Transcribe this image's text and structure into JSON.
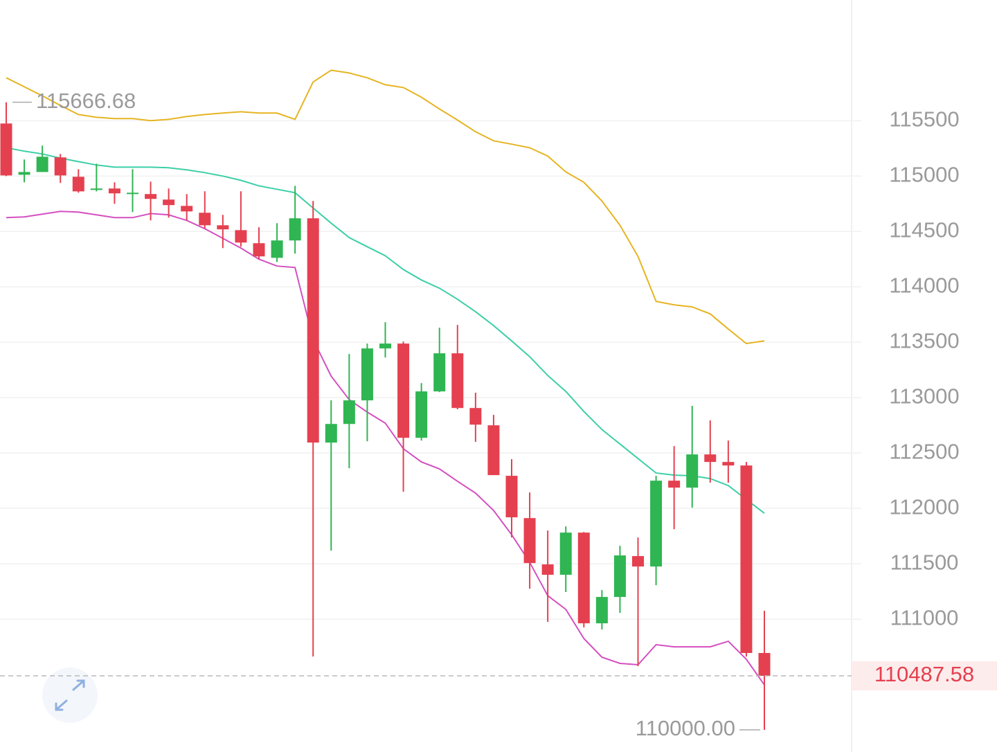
{
  "chart_data": {
    "type": "candlestick",
    "ylim": [
      109800,
      116590
    ],
    "yticks": [
      111000,
      111500,
      112000,
      112500,
      113000,
      113500,
      114000,
      114500,
      115000,
      115500
    ],
    "grid": true,
    "up_color": "#2fb552",
    "down_color": "#e5404f",
    "open": [
      115475,
      115012,
      115037,
      115169,
      114994,
      114875,
      114888,
      114844,
      114838,
      114788,
      114731,
      114669,
      114556,
      114512,
      114394,
      114262,
      114419,
      114619,
      112594,
      112762,
      112975,
      113444,
      113488,
      112637,
      113056,
      113400,
      112906,
      112750,
      112294,
      111912,
      111494,
      111400,
      111781,
      110962,
      111200,
      111569,
      111475,
      112250,
      112187,
      112487,
      112419,
      112387,
      110694
    ],
    "high": [
      115666.68,
      115150,
      115275,
      115200,
      115062,
      115112,
      114944,
      115062,
      114950,
      114888,
      114838,
      114863,
      114650,
      114863,
      114538,
      114575,
      114912,
      114775,
      112975,
      113394,
      113488,
      113681,
      113506,
      113131,
      113631,
      113656,
      113044,
      112844,
      112444,
      112144,
      111800,
      111837,
      111787,
      111262,
      111662,
      111737,
      112294,
      112562,
      112925,
      112794,
      112612,
      112419,
      111075
    ],
    "low": [
      115000,
      114944,
      115037,
      114938,
      114850,
      114862,
      114750,
      114675,
      114600,
      114625,
      114600,
      114525,
      114350,
      114362,
      114250,
      114225,
      114300,
      110662,
      111619,
      112362,
      112606,
      113362,
      112150,
      112612,
      113050,
      112894,
      112600,
      112300,
      111737,
      111275,
      110975,
      111244,
      110925,
      110906,
      111056,
      110575,
      111306,
      111812,
      112006,
      112231,
      112231,
      110662,
      110000
    ],
    "close": [
      115006,
      115037,
      115175,
      115006,
      114862,
      114888,
      114844,
      114850,
      114794,
      114738,
      114681,
      114556,
      114519,
      114400,
      114275,
      114419,
      114619,
      112594,
      112762,
      112975,
      113444,
      113488,
      112637,
      113056,
      113400,
      112906,
      112756,
      112300,
      111919,
      111506,
      111400,
      111781,
      110962,
      111200,
      111575,
      111475,
      112250,
      112187,
      112487,
      112419,
      112387,
      110694,
      110487.58
    ],
    "series": [
      {
        "color": "#e6b422",
        "values": [
          115888,
          115806,
          115725,
          115638,
          115556,
          115531,
          115519,
          115519,
          115500,
          115512,
          115538,
          115556,
          115569,
          115581,
          115569,
          115569,
          115512,
          115850,
          115956,
          115931,
          115888,
          115825,
          115800,
          115712,
          115606,
          115506,
          115400,
          115319,
          115288,
          115256,
          115181,
          115038,
          114944,
          114775,
          114556,
          114275,
          113869,
          113838,
          113819,
          113756,
          113619,
          113488,
          113512
        ]
      },
      {
        "color": "#3ccfa6",
        "values": [
          115256,
          115225,
          115200,
          115162,
          115131,
          115100,
          115081,
          115081,
          115081,
          115075,
          115056,
          115031,
          115000,
          114962,
          114912,
          114881,
          114850,
          114712,
          114575,
          114444,
          114362,
          114281,
          114156,
          114062,
          113988,
          113888,
          113775,
          113650,
          113512,
          113369,
          113200,
          113056,
          112875,
          112712,
          112581,
          112450,
          112319,
          112300,
          112294,
          112269,
          112206,
          112081,
          111956
        ]
      },
      {
        "color": "#d44fc0",
        "values": [
          114625,
          114631,
          114656,
          114681,
          114675,
          114650,
          114625,
          114625,
          114662,
          114650,
          114600,
          114525,
          114438,
          114350,
          114250,
          114188,
          114175,
          113525,
          113194,
          112981,
          112869,
          112769,
          112538,
          112419,
          112356,
          112244,
          112138,
          111981,
          111762,
          111512,
          111212,
          111088,
          110825,
          110656,
          110600,
          110588,
          110769,
          110750,
          110750,
          110750,
          110800,
          110638,
          110406
        ]
      }
    ],
    "max_marker": 115666.68,
    "min_marker": {
      "value": 110000,
      "label": "110000.00"
    },
    "last_price": 110487.58
  }
}
